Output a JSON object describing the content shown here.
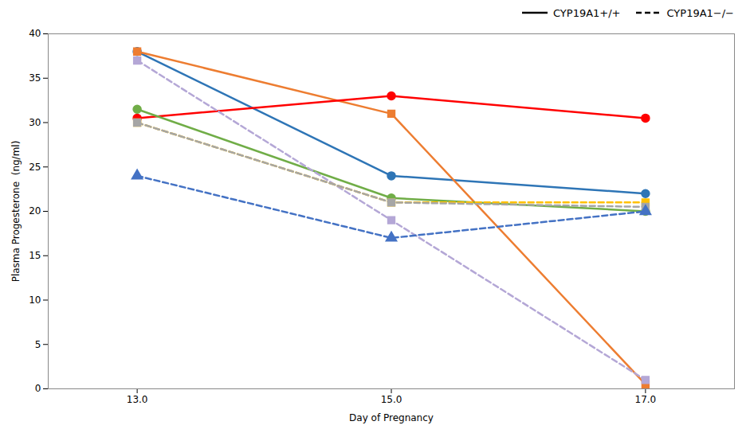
{
  "chart_data": {
    "type": "line",
    "x": [
      13,
      15,
      17
    ],
    "series": [
      {
        "name": "CYP19A1+/+",
        "color": "#2e75b6",
        "marker": "circle",
        "line_style": "solid",
        "values": [
          38.0,
          24.0,
          22.0
        ]
      },
      {
        "name": "CYP19A1+/+",
        "color": "#ed7d31",
        "marker": "square",
        "line_style": "solid",
        "values": [
          38.0,
          31.0,
          0.5
        ]
      },
      {
        "name": "CYP19A1+/+",
        "color": "#ff0000",
        "marker": "circle",
        "line_style": "solid",
        "values": [
          30.5,
          33.0,
          30.5
        ]
      },
      {
        "name": "CYP19A1+/+",
        "color": "#70ad47",
        "marker": "circle",
        "line_style": "solid",
        "values": [
          31.5,
          21.5,
          20.0
        ]
      },
      {
        "name": "CYP19A1−/−",
        "color": "#b4a7d6",
        "marker": "square",
        "line_style": "dashed",
        "values": [
          37.0,
          19.0,
          1.0
        ]
      },
      {
        "name": "CYP19A1−/−",
        "color": "#ffc000",
        "marker": "square",
        "line_style": "dashed",
        "values": [
          30.0,
          21.0,
          21.0
        ]
      },
      {
        "name": "CYP19A1−/−",
        "color": "#a6a6a6",
        "marker": "square",
        "line_style": "dashed",
        "values": [
          30.0,
          21.0,
          20.5
        ]
      },
      {
        "name": "CYP19A1−/−",
        "color": "#4472c4",
        "marker": "triangle",
        "line_style": "dashed",
        "values": [
          24.0,
          17.0,
          20.0
        ]
      }
    ],
    "xlabel": "Day of Pregnancy",
    "ylabel": "Plasma Progesterone  (ng/ml)",
    "xlim": [
      12.3,
      17.7
    ],
    "xticks": [
      13,
      15,
      17
    ],
    "ylim": [
      0,
      40
    ],
    "yticks": [
      0,
      5,
      10,
      15,
      20,
      25,
      30,
      35,
      40
    ],
    "legend": "upper right"
  }
}
